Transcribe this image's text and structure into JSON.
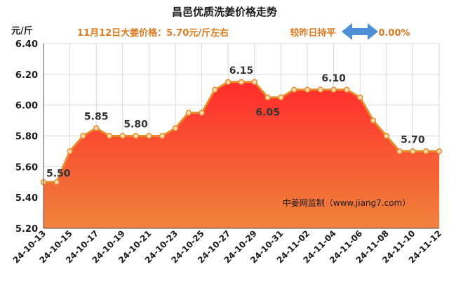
{
  "chart_data": {
    "type": "area",
    "title": "昌邑优质洗姜价格走势",
    "subtitle_price": "11月12日大姜价格：5.70元/斤左右",
    "subtitle_compare": "较昨日持平",
    "change_percent": "0.00%",
    "ylabel": "元/斤",
    "ylim": [
      5.2,
      6.4
    ],
    "yticks": [
      "5.20",
      "5.40",
      "5.60",
      "5.80",
      "6.00",
      "6.20",
      "6.40"
    ],
    "grid": true,
    "legend": "none",
    "x_tick_labels": [
      "24-10-13",
      "24-10-15",
      "24-10-17",
      "24-10-19",
      "24-10-21",
      "24-10-23",
      "24-10-25",
      "24-10-27",
      "24-10-29",
      "24-10-31",
      "24-11-02",
      "24-11-04",
      "24-11-06",
      "24-11-08",
      "24-11-10",
      "24-11-12"
    ],
    "x": [
      "24-10-13",
      "24-10-14",
      "24-10-15",
      "24-10-16",
      "24-10-17",
      "24-10-18",
      "24-10-19",
      "24-10-20",
      "24-10-21",
      "24-10-22",
      "24-10-23",
      "24-10-24",
      "24-10-25",
      "24-10-26",
      "24-10-27",
      "24-10-28",
      "24-10-29",
      "24-10-30",
      "24-10-31",
      "24-11-01",
      "24-11-02",
      "24-11-03",
      "24-11-04",
      "24-11-05",
      "24-11-06",
      "24-11-07",
      "24-11-08",
      "24-11-09",
      "24-11-10",
      "24-11-11",
      "24-11-12"
    ],
    "values": [
      5.5,
      5.5,
      5.7,
      5.8,
      5.85,
      5.8,
      5.8,
      5.8,
      5.8,
      5.8,
      5.85,
      5.95,
      5.95,
      6.1,
      6.15,
      6.15,
      6.15,
      6.05,
      6.05,
      6.1,
      6.1,
      6.1,
      6.1,
      6.1,
      6.05,
      5.9,
      5.8,
      5.7,
      5.7,
      5.7,
      5.7
    ],
    "data_labels": [
      {
        "x": "24-10-13",
        "text": "5.50"
      },
      {
        "x": "24-10-17",
        "text": "5.85"
      },
      {
        "x": "24-10-20",
        "text": "5.80"
      },
      {
        "x": "24-10-28",
        "text": "6.15"
      },
      {
        "x": "24-10-30",
        "text": "6.05"
      },
      {
        "x": "24-11-04",
        "text": "6.10"
      },
      {
        "x": "24-11-10",
        "text": "5.70"
      }
    ],
    "annotation": "中姜网监制（www.jiang7.com）",
    "colors": {
      "fill_top": "#ff2b2b",
      "fill_bottom": "#f0843c",
      "line": "#e88a2a",
      "marker_fill": "#f6ddb0",
      "arrow": "#4f8fd8"
    }
  }
}
